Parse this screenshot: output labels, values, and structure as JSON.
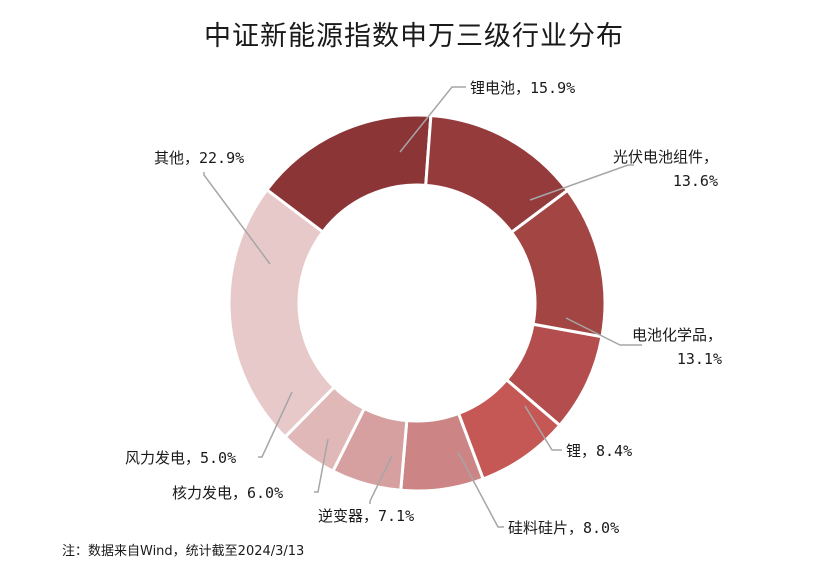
{
  "chart_data": {
    "type": "pie",
    "donut": true,
    "title": "中证新能源指数申万三级行业分布",
    "slices": [
      {
        "name": "锂电池",
        "value": 15.9,
        "label_lines": [
          "锂电池，15.9%"
        ],
        "color": "#8b3537"
      },
      {
        "name": "光伏电池组件",
        "value": 13.6,
        "label_lines": [
          "光伏电池组件，",
          "13.6%"
        ],
        "color": "#953b3c"
      },
      {
        "name": "电池化学品",
        "value": 13.1,
        "label_lines": [
          "电池化学品，",
          "13.1%"
        ],
        "color": "#a24543"
      },
      {
        "name": "锂",
        "value": 8.4,
        "label_lines": [
          "锂，8.4%"
        ],
        "color": "#b44d4d"
      },
      {
        "name": "硅料硅片",
        "value": 8.0,
        "label_lines": [
          "硅料硅片，8.0%"
        ],
        "color": "#c55755"
      },
      {
        "name": "逆变器",
        "value": 7.1,
        "label_lines": [
          "逆变器，7.1%"
        ],
        "color": "#cc8484"
      },
      {
        "name": "核力发电",
        "value": 6.0,
        "label_lines": [
          "核力发电，6.0%"
        ],
        "color": "#d6a0a0"
      },
      {
        "name": "风力发电",
        "value": 5.0,
        "label_lines": [
          "风力发电，5.0%"
        ],
        "color": "#e0b8b8"
      },
      {
        "name": "其他",
        "value": 22.9,
        "label_lines": [
          "其他，22.9%"
        ],
        "color": "#e8c9c9"
      }
    ]
  },
  "note": "注：数据来自Wind，统计截至2024/3/13"
}
